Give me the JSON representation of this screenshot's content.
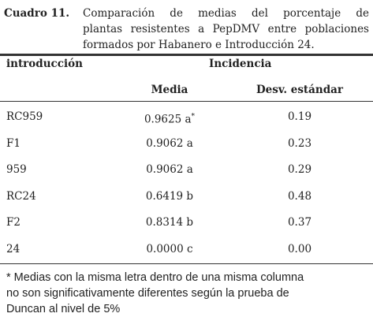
{
  "caption": {
    "label": "Cuadro 11.",
    "lines": [
      "Comparación de medias del porcentaje de",
      "plantas resistentes a PepDMV entre poblaciones",
      "formados por Habanero e Introducción 24."
    ]
  },
  "table": {
    "header": {
      "row_label": "introducción",
      "group": "Incidencia",
      "columns": [
        "Media",
        "Desv. estándar"
      ]
    },
    "rows": [
      {
        "label": "RC959",
        "media": "0.9625 a",
        "mark": "*",
        "desv": "0.19"
      },
      {
        "label": "F1",
        "media": "0.9062 a",
        "desv": "0.23"
      },
      {
        "label": "959",
        "media": "0.9062 a",
        "desv": "0.29"
      },
      {
        "label": "RC24",
        "media": "0.6419 b",
        "desv": "0.48"
      },
      {
        "label": "F2",
        "media": "0.8314 b",
        "desv": "0.37"
      },
      {
        "label": "24",
        "media": "0.0000 c",
        "desv": "0.00"
      }
    ]
  },
  "footnote": [
    "* Medias con la misma letra dentro de una misma columna",
    "no son significativamente diferentes según la prueba de",
    "Duncan al nivel de 5%"
  ]
}
